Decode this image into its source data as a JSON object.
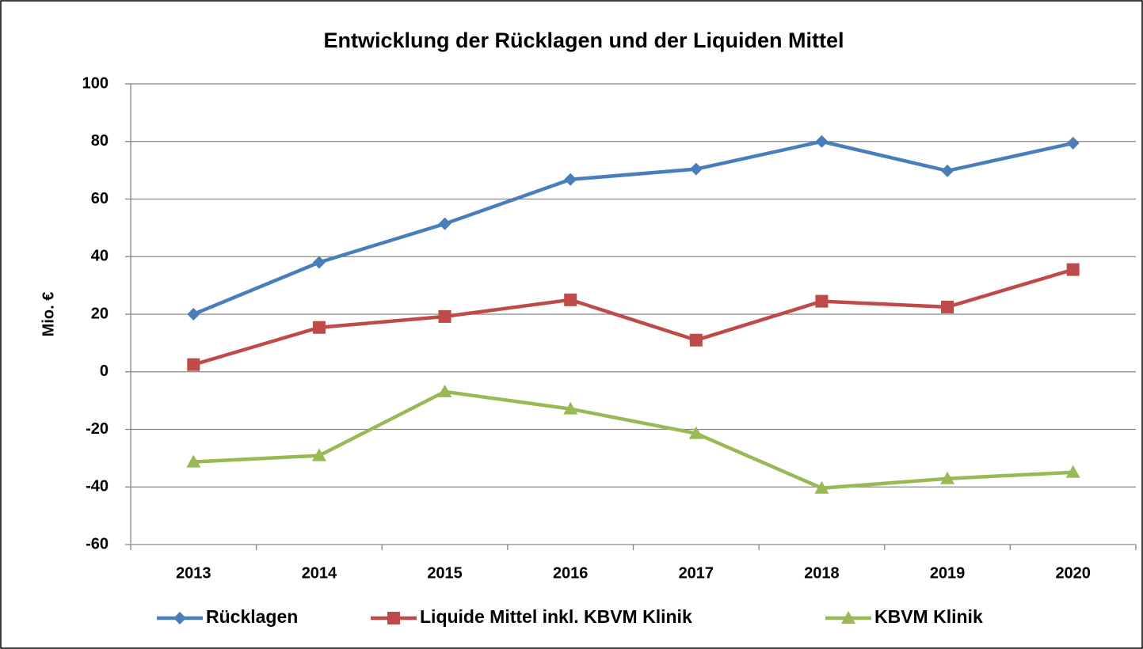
{
  "chart_data": {
    "type": "line",
    "title": "Entwicklung  der Rücklagen und der Liquiden Mittel",
    "y_label": "Mio. €",
    "categories": [
      "2013",
      "2014",
      "2015",
      "2016",
      "2017",
      "2018",
      "2019",
      "2020"
    ],
    "series": [
      {
        "name": "Rücklagen",
        "color": "#4a7ebb",
        "marker": "diamond",
        "values": [
          20,
          38,
          51.4,
          66.8,
          70.4,
          80,
          69.8,
          79.4
        ]
      },
      {
        "name": "Liquide Mittel inkl. KBVM Klinik",
        "color": "#be4b48",
        "marker": "square",
        "values": [
          2.5,
          15.4,
          19.2,
          25,
          11,
          24.5,
          22.5,
          35.5
        ]
      },
      {
        "name": "KBVM Klinik",
        "color": "#98b954",
        "marker": "triangle",
        "values": [
          -31.3,
          -29.1,
          -6.9,
          -12.9,
          -21.4,
          -40.4,
          -37.1,
          -34.9
        ]
      }
    ],
    "ylim": [
      -60,
      100
    ],
    "yticks": [
      -60,
      -40,
      -20,
      0,
      20,
      40,
      60,
      80,
      100
    ],
    "grid": true,
    "legend": "bottom"
  }
}
